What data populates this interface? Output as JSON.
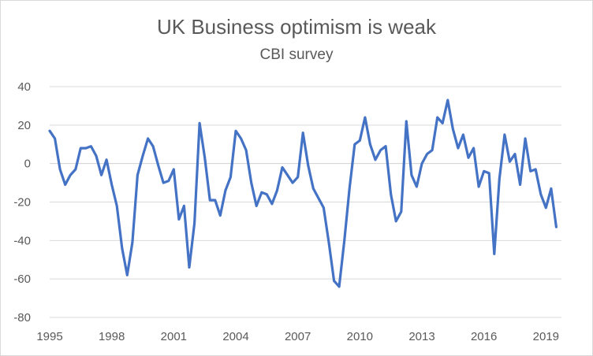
{
  "chart_data": {
    "type": "line",
    "title": "UK Business optimism is weak",
    "subtitle": "CBI survey",
    "xlabel": "",
    "ylabel": "",
    "ylim": [
      -80,
      40
    ],
    "xlim": [
      1995.0,
      2019.75
    ],
    "grid": true,
    "legend": "none",
    "y_ticks": [
      40,
      20,
      0,
      -20,
      -40,
      -60,
      -80
    ],
    "y_tick_labels": [
      "40",
      "20",
      "0",
      "-20",
      "-40",
      "-60",
      "-80"
    ],
    "x_ticks": [
      1995,
      1998,
      2001,
      2004,
      2007,
      2010,
      2013,
      2016,
      2019
    ],
    "x_tick_labels": [
      "1995",
      "1998",
      "2001",
      "2004",
      "2007",
      "2010",
      "2013",
      "2016",
      "2019"
    ],
    "series": [
      {
        "color": "#4472C4",
        "x": [
          1995.0,
          1995.25,
          1995.5,
          1995.75,
          1996.0,
          1996.25,
          1996.5,
          1996.75,
          1997.0,
          1997.25,
          1997.5,
          1997.75,
          1998.0,
          1998.25,
          1998.5,
          1998.75,
          1999.0,
          1999.25,
          1999.5,
          1999.75,
          2000.0,
          2000.25,
          2000.5,
          2000.75,
          2001.0,
          2001.25,
          2001.5,
          2001.75,
          2002.0,
          2002.25,
          2002.5,
          2002.75,
          2003.0,
          2003.25,
          2003.5,
          2003.75,
          2004.0,
          2004.25,
          2004.5,
          2004.75,
          2005.0,
          2005.25,
          2005.5,
          2005.75,
          2006.0,
          2006.25,
          2006.5,
          2006.75,
          2007.0,
          2007.25,
          2007.5,
          2007.75,
          2008.0,
          2008.25,
          2008.5,
          2008.75,
          2009.0,
          2009.25,
          2009.5,
          2009.75,
          2010.0,
          2010.25,
          2010.5,
          2010.75,
          2011.0,
          2011.25,
          2011.5,
          2011.75,
          2012.0,
          2012.25,
          2012.5,
          2012.75,
          2013.0,
          2013.25,
          2013.5,
          2013.75,
          2014.0,
          2014.25,
          2014.5,
          2014.75,
          2015.0,
          2015.25,
          2015.5,
          2015.75,
          2016.0,
          2016.25,
          2016.5,
          2016.75,
          2017.0,
          2017.25,
          2017.5,
          2017.75,
          2018.0,
          2018.25,
          2018.5,
          2018.75,
          2019.0,
          2019.25,
          2019.5
        ],
        "values": [
          17,
          13,
          -3,
          -11,
          -6,
          -3,
          8,
          8,
          9,
          4,
          -6,
          2,
          -11,
          -22,
          -44,
          -58,
          -41,
          -6,
          4,
          13,
          9,
          -1,
          -10,
          -9,
          -3,
          -29,
          -22,
          -54,
          -31,
          21,
          3,
          -19,
          -19,
          -27,
          -14,
          -7,
          17,
          13,
          7,
          -10,
          -22,
          -15,
          -16,
          -21,
          -14,
          -2,
          -6,
          -10,
          -7,
          16,
          -1,
          -13,
          -18,
          -23,
          -41,
          -61,
          -64,
          -40,
          -13,
          10,
          12,
          24,
          10,
          2,
          7,
          9,
          -16,
          -30,
          -25,
          22,
          -6,
          -12,
          0,
          5,
          7,
          24,
          21,
          33,
          18,
          8,
          15,
          3,
          8,
          -12,
          -4,
          -5,
          -47,
          -8,
          15,
          1,
          5,
          -11,
          13,
          -4,
          -3,
          -16,
          -23,
          -13,
          -33
        ]
      }
    ]
  }
}
